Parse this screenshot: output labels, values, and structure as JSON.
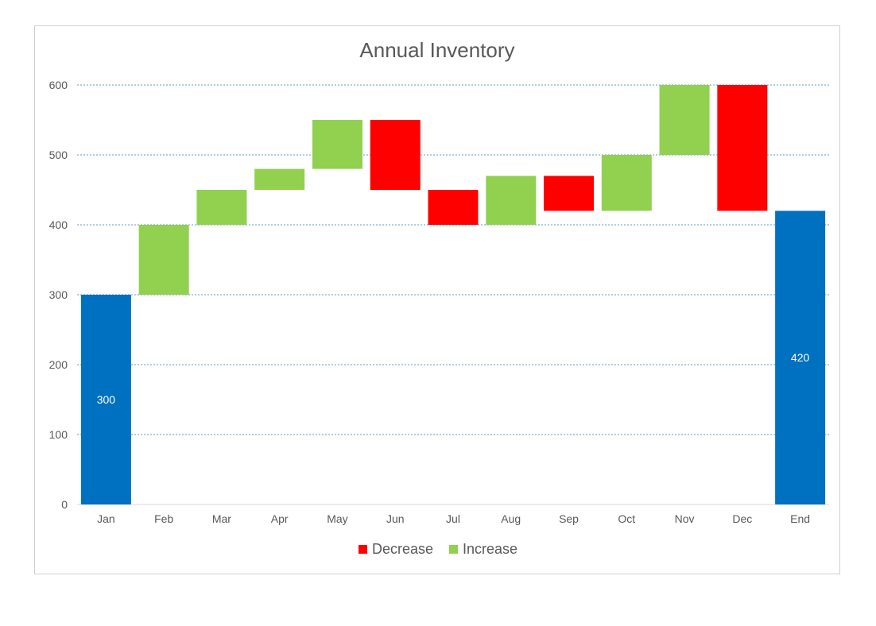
{
  "chart_data": {
    "type": "bar",
    "subtype": "waterfall",
    "title": "Annual Inventory",
    "xlabel": "",
    "ylabel": "",
    "ylim": [
      0,
      600
    ],
    "yticks": [
      0,
      100,
      200,
      300,
      400,
      500,
      600
    ],
    "grid": true,
    "legend_position": "bottom",
    "categories": [
      "Jan",
      "Feb",
      "Mar",
      "Apr",
      "May",
      "Jun",
      "Jul",
      "Aug",
      "Sep",
      "Oct",
      "Nov",
      "Dec",
      "End"
    ],
    "bars": [
      {
        "category": "Jan",
        "kind": "total",
        "start": 0,
        "end": 300,
        "label": "300"
      },
      {
        "category": "Feb",
        "kind": "increase",
        "start": 300,
        "end": 400
      },
      {
        "category": "Mar",
        "kind": "increase",
        "start": 400,
        "end": 450
      },
      {
        "category": "Apr",
        "kind": "increase",
        "start": 450,
        "end": 480
      },
      {
        "category": "May",
        "kind": "increase",
        "start": 480,
        "end": 550
      },
      {
        "category": "Jun",
        "kind": "decrease",
        "start": 550,
        "end": 450
      },
      {
        "category": "Jul",
        "kind": "decrease",
        "start": 450,
        "end": 400
      },
      {
        "category": "Aug",
        "kind": "increase",
        "start": 400,
        "end": 470
      },
      {
        "category": "Sep",
        "kind": "decrease",
        "start": 470,
        "end": 420
      },
      {
        "category": "Oct",
        "kind": "increase",
        "start": 420,
        "end": 500
      },
      {
        "category": "Nov",
        "kind": "increase",
        "start": 500,
        "end": 600
      },
      {
        "category": "Dec",
        "kind": "decrease",
        "start": 600,
        "end": 420
      },
      {
        "category": "End",
        "kind": "total",
        "start": 0,
        "end": 420,
        "label": "420"
      }
    ],
    "legend": [
      {
        "name": "Decrease",
        "color": "#ff0000"
      },
      {
        "name": "Increase",
        "color": "#92d050"
      }
    ],
    "colors": {
      "total": "#0070c0",
      "increase": "#92d050",
      "decrease": "#ff0000",
      "grid": "#5b9bd5",
      "axis_text": "#595959"
    }
  }
}
